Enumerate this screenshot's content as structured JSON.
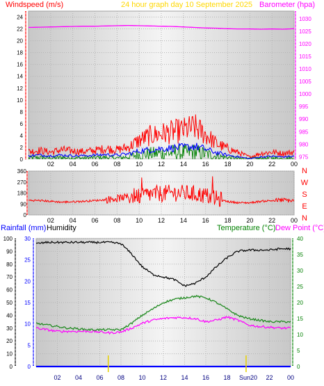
{
  "header": {
    "windspeed_label": "Windspeed (m/s)",
    "title": "24 hour graph day   10 September 2025",
    "barometer_label": "Barometer (hpa)"
  },
  "direction_letters": [
    "N",
    "W",
    "S",
    "E",
    "N"
  ],
  "bottom_header": {
    "rainfall_label": "Rainfall (mm)",
    "humidity_label": "Humidity",
    "temperature_label": "Temperature (°C)",
    "dewpoint_label": "Dew Point (°C)"
  },
  "colors": {
    "wind_gust": "#ff0000",
    "wind_avg": "#0000ff",
    "wind_low": "#008000",
    "barometer": "#ff00ff",
    "direction": "#ff0000",
    "humidity": "#000000",
    "temperature": "#228b22",
    "dewpoint": "#ff00ff",
    "rainfall": "#0000ff",
    "title": "#ffd700",
    "windspeed_axis": "#ff0000",
    "barometer_axis": "#ff00ff",
    "direction_axis": "#ff0000",
    "humidity_axis": "#000000",
    "rain_axis": "#0000ff",
    "temp_axis": "#008000"
  },
  "chart_data": [
    {
      "type": "line",
      "name": "wind-barometer",
      "title": "24 hour graph day   10 September 2025",
      "x_ticks": [
        "02",
        "04",
        "06",
        "08",
        "10",
        "12",
        "14",
        "16",
        "18",
        "20",
        "22",
        "00"
      ],
      "left_axis": {
        "label": "Windspeed (m/s)",
        "ylim": [
          0,
          25
        ],
        "ticks": [
          0,
          2,
          4,
          6,
          8,
          10,
          12,
          14,
          16,
          18,
          20,
          22,
          24
        ]
      },
      "right_axis": {
        "label": "Barometer (hpa)",
        "ylim": [
          974,
          1033
        ],
        "ticks": [
          975,
          980,
          985,
          990,
          995,
          1000,
          1005,
          1010,
          1015,
          1020,
          1025,
          1030
        ]
      },
      "hours": [
        0,
        1,
        2,
        3,
        4,
        5,
        6,
        7,
        8,
        9,
        10,
        11,
        12,
        13,
        14,
        15,
        16,
        17,
        18,
        19,
        20,
        21,
        22,
        23,
        24
      ],
      "series": [
        {
          "axis": "right",
          "values": [
            1026.5,
            1026.6,
            1026.7,
            1026.8,
            1026.9,
            1027.0,
            1027.0,
            1027.1,
            1027.2,
            1027.3,
            1027.2,
            1027.1,
            1027.0,
            1026.9,
            1026.7,
            1026.5,
            1026.3,
            1026.2,
            1026.0,
            1025.9,
            1025.9,
            1025.8,
            1025.9,
            1025.8,
            1026.0
          ]
        },
        {
          "axis": "left",
          "values": [
            1.3,
            1.5,
            1.2,
            1.6,
            1.4,
            1.3,
            1.5,
            1.8,
            1.6,
            2.0,
            3.2,
            4.0,
            4.3,
            4.6,
            4.9,
            5.4,
            4.2,
            2.6,
            1.8,
            1.1,
            0.4,
            1.0,
            1.2,
            1.0,
            1.2
          ]
        },
        {
          "axis": "left",
          "values": [
            0.6,
            0.7,
            0.6,
            0.7,
            0.6,
            0.6,
            0.7,
            0.8,
            0.7,
            0.9,
            1.4,
            1.6,
            1.8,
            1.9,
            2.0,
            2.2,
            1.7,
            1.1,
            0.7,
            0.4,
            0.1,
            0.4,
            0.5,
            0.4,
            0.5
          ]
        },
        {
          "axis": "left",
          "values": [
            0.2,
            0.3,
            0.2,
            0.3,
            0.2,
            0.2,
            0.3,
            0.3,
            0.2,
            0.4,
            0.8,
            0.9,
            1.0,
            1.1,
            1.1,
            1.2,
            0.9,
            0.5,
            0.3,
            0.1,
            0.0,
            0.1,
            0.2,
            0.1,
            0.2
          ]
        }
      ]
    },
    {
      "type": "line",
      "name": "wind-direction",
      "x_ticks": [
        "02",
        "04",
        "06",
        "08",
        "10",
        "12",
        "14",
        "16",
        "18",
        "20",
        "22",
        "00"
      ],
      "left_axis": {
        "ylim": [
          0,
          360
        ],
        "ticks": [
          0,
          90,
          180,
          270,
          360
        ]
      },
      "right_axis": {
        "letters": [
          "N",
          "W",
          "S",
          "E",
          "N"
        ]
      },
      "hours": [
        0,
        1,
        2,
        3,
        4,
        5,
        6,
        7,
        8,
        9,
        10,
        11,
        12,
        13,
        14,
        15,
        16,
        17,
        18,
        19,
        20,
        21,
        22,
        23,
        24
      ],
      "series": [
        {
          "values": [
            120,
            118,
            112,
            105,
            108,
            112,
            118,
            125,
            135,
            150,
            160,
            170,
            175,
            180,
            178,
            172,
            160,
            130,
            110,
            100,
            100,
            112,
            118,
            122,
            115
          ]
        }
      ]
    },
    {
      "type": "line",
      "name": "humidity-temperature",
      "x_ticks": [
        "02",
        "04",
        "06",
        "08",
        "10",
        "12",
        "14",
        "16",
        "18",
        "Sun20",
        "22",
        "00"
      ],
      "left_axis": {
        "label": "Humidity",
        "ylim": [
          0,
          100
        ],
        "ticks": [
          0,
          10,
          20,
          30,
          40,
          50,
          60,
          70,
          80,
          90,
          100
        ]
      },
      "rain_axis": {
        "label": "Rainfall (mm)",
        "ylim": [
          0,
          30
        ],
        "ticks": [
          0,
          5,
          10,
          15,
          20,
          25,
          30
        ]
      },
      "right_axis": {
        "label": "Temperature (°C)",
        "ylim": [
          0,
          40
        ],
        "ticks": [
          0,
          5,
          10,
          15,
          20,
          25,
          30,
          35,
          40
        ]
      },
      "hours": [
        0,
        1,
        2,
        3,
        4,
        5,
        6,
        7,
        8,
        9,
        10,
        11,
        12,
        13,
        14,
        15,
        16,
        17,
        18,
        19,
        20,
        21,
        22,
        23,
        24
      ],
      "series": [
        {
          "axis": "left",
          "values": [
            96,
            97,
            97,
            97,
            97,
            97,
            97,
            97,
            96,
            88,
            78,
            72,
            70,
            68,
            63,
            65,
            70,
            78,
            85,
            90,
            91,
            91,
            91,
            92,
            92
          ]
        },
        {
          "axis": "right",
          "values": [
            13.5,
            13.0,
            12.5,
            12.0,
            11.8,
            11.5,
            11.5,
            11.5,
            11.5,
            13.5,
            16.0,
            18.0,
            20.0,
            21.0,
            21.5,
            22.0,
            21.5,
            20.0,
            18.0,
            16.0,
            15.0,
            14.5,
            14.0,
            14.0,
            14.0
          ]
        },
        {
          "axis": "right",
          "values": [
            12.0,
            11.5,
            11.0,
            11.0,
            11.0,
            11.0,
            10.8,
            10.5,
            10.8,
            12.0,
            13.5,
            14.5,
            15.0,
            15.3,
            15.3,
            15.0,
            14.0,
            14.5,
            15.5,
            14.5,
            13.0,
            12.5,
            12.3,
            12.0,
            12.0
          ]
        },
        {
          "axis": "rain",
          "values": [
            0,
            0,
            0,
            0,
            0,
            0,
            0,
            0,
            0,
            0,
            0,
            0,
            0,
            0,
            0,
            0,
            0,
            0,
            0,
            0,
            0,
            0,
            0,
            0,
            0
          ]
        }
      ]
    }
  ]
}
